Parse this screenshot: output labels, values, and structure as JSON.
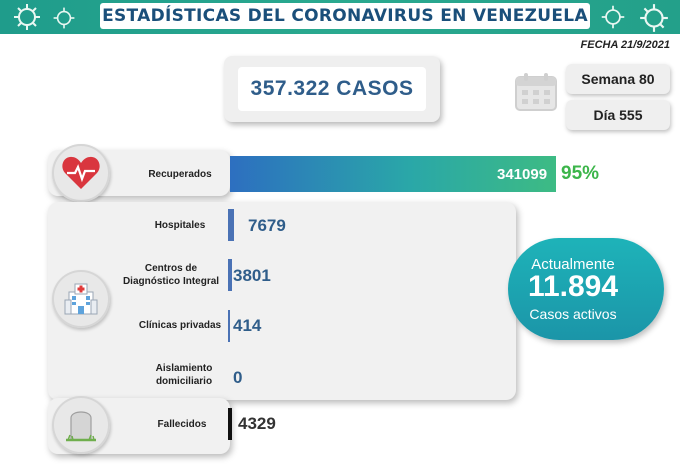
{
  "header": {
    "title": "ESTADÍSTICAS DEL CORONAVIRUS EN VENEZUELA",
    "date": "FECHA 21/9/2021"
  },
  "summary": {
    "cases": "357.322 CASOS",
    "week": "Semana 80",
    "day": "Día 555"
  },
  "recovered": {
    "label": "Recuperados",
    "value": "341099",
    "percent": "95%"
  },
  "hospital": {
    "rows": [
      {
        "label": "Hospitales",
        "value": "7679"
      },
      {
        "label": "Centros de Diagnóstico Integral",
        "value": "3801"
      },
      {
        "label": "Clínicas privadas",
        "value": "414"
      },
      {
        "label": "Aislamiento domiciliario",
        "value": "0"
      }
    ]
  },
  "active": {
    "top": "Actualmente",
    "number": "11.894",
    "bottom": "Casos activos"
  },
  "deaths": {
    "label": "Fallecidos",
    "value": "4329"
  },
  "colors": {
    "banner": "#1f9c8b",
    "title_text": "#1a4f7a",
    "value_blue": "#2f5d8a",
    "percent_green": "#3cb54a",
    "active_teal": "#1eb3b9"
  },
  "icons": [
    "virus-icon",
    "calendar-icon",
    "heart-icon",
    "hospital-icon",
    "tombstone-icon"
  ]
}
